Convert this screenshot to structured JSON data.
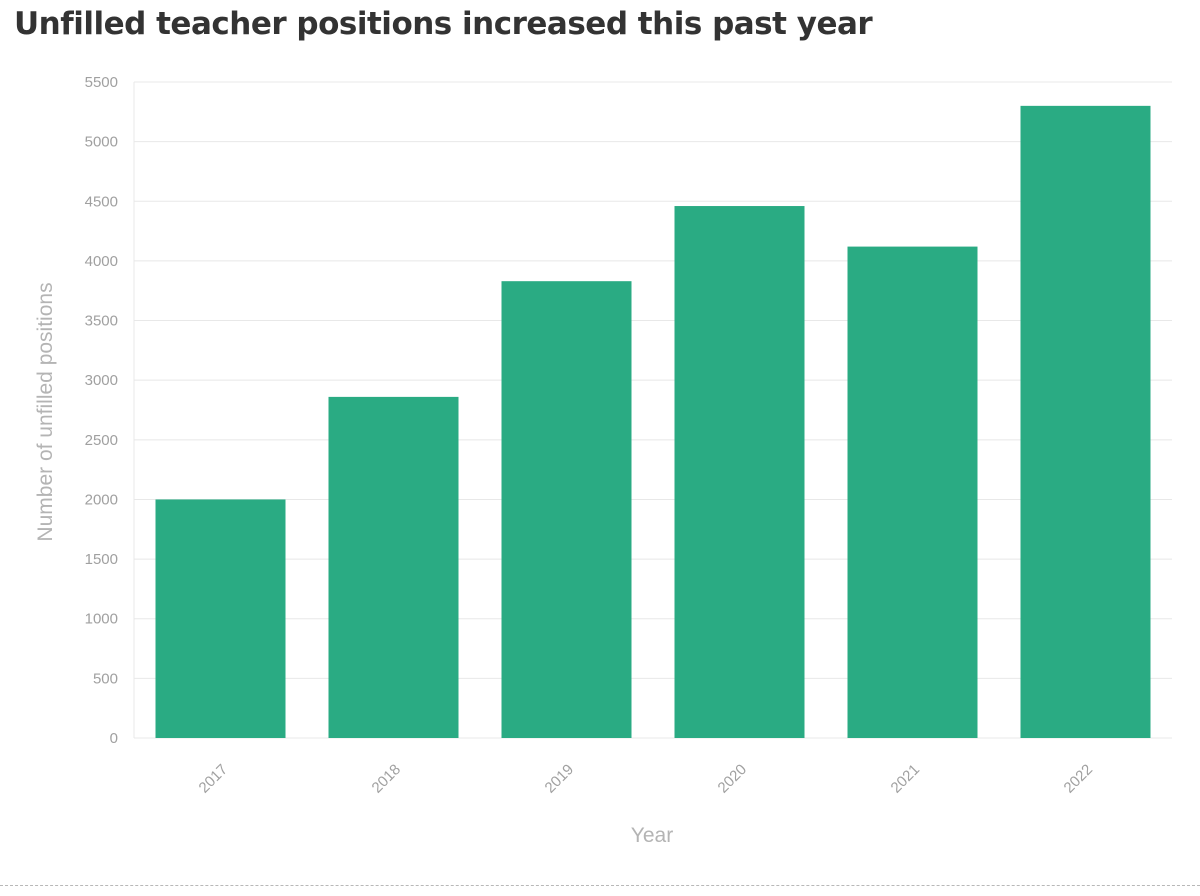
{
  "chart_data": {
    "type": "bar",
    "title": "Unfilled teacher positions increased this past year",
    "xlabel": "Year",
    "ylabel": "Number of unfilled positions",
    "categories": [
      "2017",
      "2018",
      "2019",
      "2020",
      "2021",
      "2022"
    ],
    "values": [
      2000,
      2860,
      3830,
      4460,
      4120,
      5300
    ],
    "ylim": [
      0,
      5500
    ],
    "yticks": [
      "0",
      "500",
      "1000",
      "1500",
      "2000",
      "2500",
      "3000",
      "3500",
      "4000",
      "4500",
      "5000",
      "5500"
    ],
    "grid": true,
    "legend": "none",
    "colors": {
      "bar": "#2aab83",
      "grid": "#e8e8e8",
      "title": "#333333",
      "tick": "#a0a0a0"
    }
  }
}
